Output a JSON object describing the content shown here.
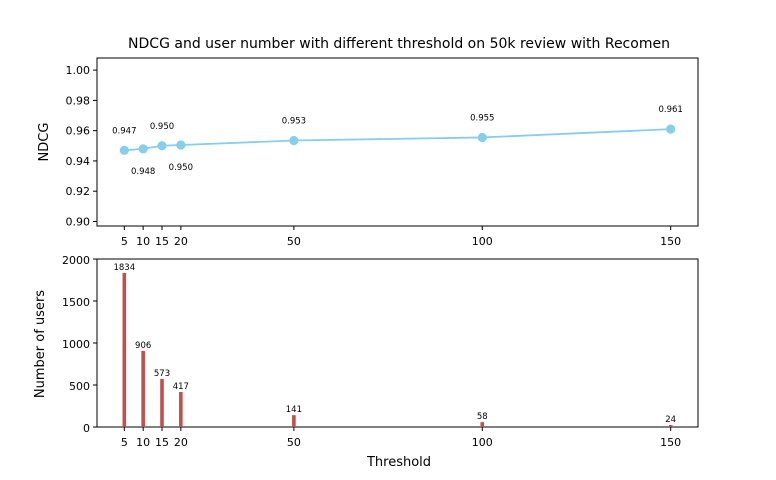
{
  "chart_data": [
    {
      "type": "line",
      "title": "NDCG and user number with different threshold  on 50k review with Recomen",
      "xlabel": "",
      "ylabel": "NDCG",
      "x": [
        5,
        10,
        15,
        20,
        50,
        100,
        150
      ],
      "xticks": [
        "5",
        "10",
        "15",
        "20",
        "50",
        "100",
        "150"
      ],
      "series": [
        {
          "values": [
            0.947,
            0.948,
            0.95,
            0.9505,
            0.9535,
            0.9555,
            0.961
          ]
        }
      ],
      "data_labels": [
        "0.947",
        "0.948",
        "0.950",
        "0.950",
        "0.953",
        "0.955",
        "0.961"
      ],
      "ylim": [
        0.897,
        1.008
      ],
      "yticks": [
        "0.90",
        "0.92",
        "0.94",
        "0.96",
        "0.98",
        "1.00"
      ],
      "color": "#87ceeb",
      "grid": false
    },
    {
      "type": "bar",
      "title": "",
      "xlabel": "Threshold",
      "ylabel": "Number of users",
      "x": [
        5,
        10,
        15,
        20,
        50,
        100,
        150
      ],
      "xticks": [
        "5",
        "10",
        "15",
        "20",
        "50",
        "100",
        "150"
      ],
      "values": [
        1834,
        906,
        573,
        417,
        141,
        58,
        24
      ],
      "data_labels": [
        "1834",
        "906",
        "573",
        "417",
        "141",
        "58",
        "24"
      ],
      "ylim": [
        0,
        2000
      ],
      "yticks": [
        "0",
        "500",
        "1000",
        "1500",
        "2000"
      ],
      "color": "#c0504d",
      "grid": false
    }
  ]
}
